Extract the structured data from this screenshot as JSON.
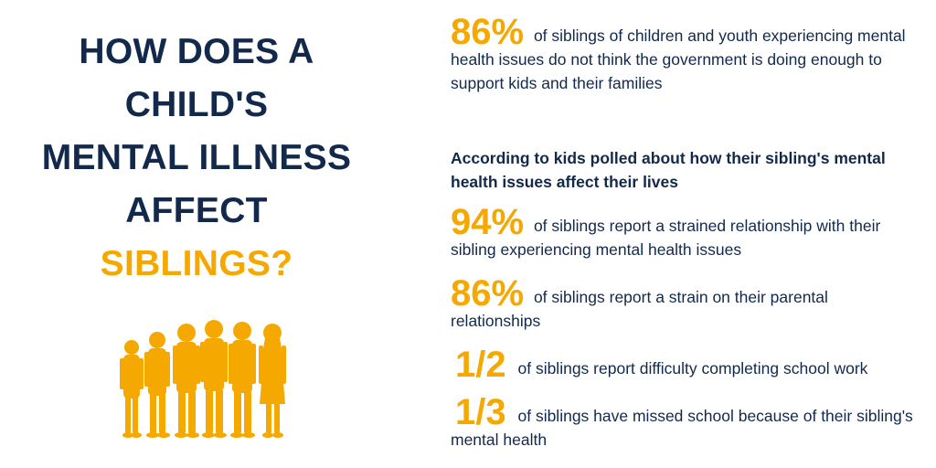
{
  "title": {
    "line1": "HOW DOES A",
    "line2": "CHILD'S",
    "line3": "MENTAL ILLNESS",
    "line4": "AFFECT",
    "line5": "SIBLINGS?"
  },
  "colors": {
    "navy": "#13294b",
    "accent": "#f5a800"
  },
  "illustration": {
    "icon": "children-silhouettes-icon"
  },
  "stats": {
    "government": {
      "value": "86%",
      "text": "of siblings of children and youth experiencing mental health issues do not think the government is doing enough to support kids and their families"
    },
    "intro": "According to kids polled about how their sibling's mental health issues affect their lives",
    "strained_sibling": {
      "value": "94%",
      "text": "of siblings report a strained relationship with their sibling experiencing mental health issues"
    },
    "parental": {
      "value": "86%",
      "text": "of siblings report a strain on their parental relationships"
    },
    "school_work": {
      "value": "1/2",
      "text": "of siblings report difficulty completing school work"
    },
    "missed_school": {
      "value": "1/3",
      "text": "of siblings have missed school because of their sibling's mental health"
    }
  }
}
